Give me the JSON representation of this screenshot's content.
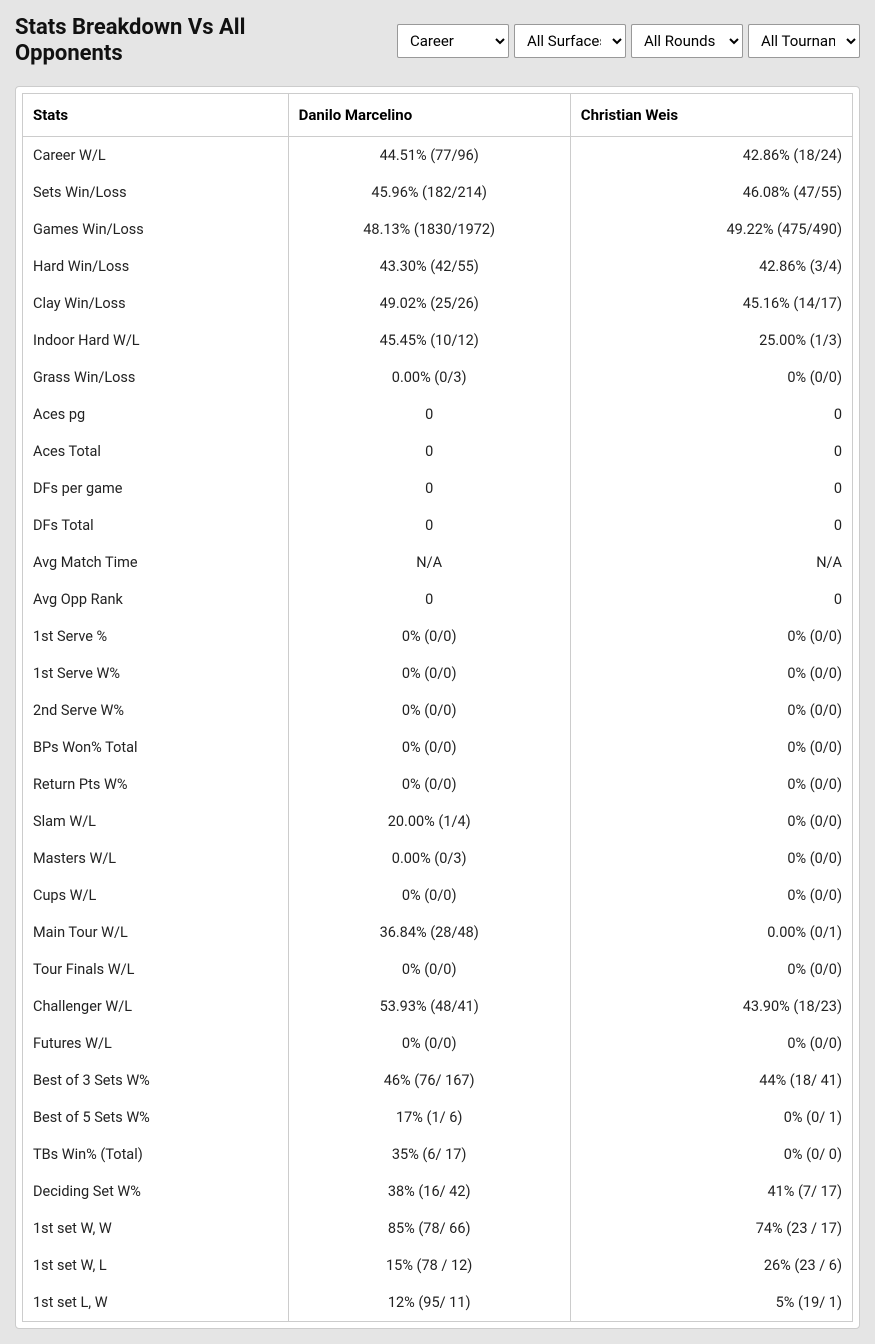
{
  "header": {
    "title": "Stats Breakdown Vs All Opponents"
  },
  "filters": {
    "timeframe": {
      "selected": "Career"
    },
    "surface": {
      "selected": "All Surfaces"
    },
    "rounds": {
      "selected": "All Rounds"
    },
    "tournaments": {
      "selected": "All Tournaments"
    }
  },
  "table": {
    "columns": {
      "stat": "Stats",
      "player1": "Danilo Marcelino",
      "player2": "Christian Weis"
    },
    "rows": [
      {
        "stat": "Career W/L",
        "p1": "44.51% (77/96)",
        "p2": "42.86% (18/24)"
      },
      {
        "stat": "Sets Win/Loss",
        "p1": "45.96% (182/214)",
        "p2": "46.08% (47/55)"
      },
      {
        "stat": "Games Win/Loss",
        "p1": "48.13% (1830/1972)",
        "p2": "49.22% (475/490)"
      },
      {
        "stat": "Hard Win/Loss",
        "p1": "43.30% (42/55)",
        "p2": "42.86% (3/4)"
      },
      {
        "stat": "Clay Win/Loss",
        "p1": "49.02% (25/26)",
        "p2": "45.16% (14/17)"
      },
      {
        "stat": "Indoor Hard W/L",
        "p1": "45.45% (10/12)",
        "p2": "25.00% (1/3)"
      },
      {
        "stat": "Grass Win/Loss",
        "p1": "0.00% (0/3)",
        "p2": "0% (0/0)"
      },
      {
        "stat": "Aces pg",
        "p1": "0",
        "p2": "0"
      },
      {
        "stat": "Aces Total",
        "p1": "0",
        "p2": "0"
      },
      {
        "stat": "DFs per game",
        "p1": "0",
        "p2": "0"
      },
      {
        "stat": "DFs Total",
        "p1": "0",
        "p2": "0"
      },
      {
        "stat": "Avg Match Time",
        "p1": "N/A",
        "p2": "N/A"
      },
      {
        "stat": "Avg Opp Rank",
        "p1": "0",
        "p2": "0"
      },
      {
        "stat": "1st Serve %",
        "p1": "0% (0/0)",
        "p2": "0% (0/0)"
      },
      {
        "stat": "1st Serve W%",
        "p1": "0% (0/0)",
        "p2": "0% (0/0)"
      },
      {
        "stat": "2nd Serve W%",
        "p1": "0% (0/0)",
        "p2": "0% (0/0)"
      },
      {
        "stat": "BPs Won% Total",
        "p1": "0% (0/0)",
        "p2": "0% (0/0)"
      },
      {
        "stat": "Return Pts W%",
        "p1": "0% (0/0)",
        "p2": "0% (0/0)"
      },
      {
        "stat": "Slam W/L",
        "p1": "20.00% (1/4)",
        "p2": "0% (0/0)"
      },
      {
        "stat": "Masters W/L",
        "p1": "0.00% (0/3)",
        "p2": "0% (0/0)"
      },
      {
        "stat": "Cups W/L",
        "p1": "0% (0/0)",
        "p2": "0% (0/0)"
      },
      {
        "stat": "Main Tour W/L",
        "p1": "36.84% (28/48)",
        "p2": "0.00% (0/1)"
      },
      {
        "stat": "Tour Finals W/L",
        "p1": "0% (0/0)",
        "p2": "0% (0/0)"
      },
      {
        "stat": "Challenger W/L",
        "p1": "53.93% (48/41)",
        "p2": "43.90% (18/23)"
      },
      {
        "stat": "Futures W/L",
        "p1": "0% (0/0)",
        "p2": "0% (0/0)"
      },
      {
        "stat": "Best of 3 Sets W%",
        "p1": "46% (76/ 167)",
        "p2": "44% (18/ 41)"
      },
      {
        "stat": "Best of 5 Sets W%",
        "p1": "17% (1/ 6)",
        "p2": "0% (0/ 1)"
      },
      {
        "stat": "TBs Win% (Total)",
        "p1": "35% (6/ 17)",
        "p2": "0% (0/ 0)"
      },
      {
        "stat": "Deciding Set W%",
        "p1": "38% (16/ 42)",
        "p2": "41% (7/ 17)"
      },
      {
        "stat": "1st set W, W",
        "p1": "85% (78/ 66)",
        "p2": "74% (23 / 17)"
      },
      {
        "stat": "1st set W, L",
        "p1": "15% (78 / 12)",
        "p2": "26% (23 / 6)"
      },
      {
        "stat": "1st set L, W",
        "p1": "12% (95/ 11)",
        "p2": "5% (19/ 1)"
      }
    ]
  }
}
